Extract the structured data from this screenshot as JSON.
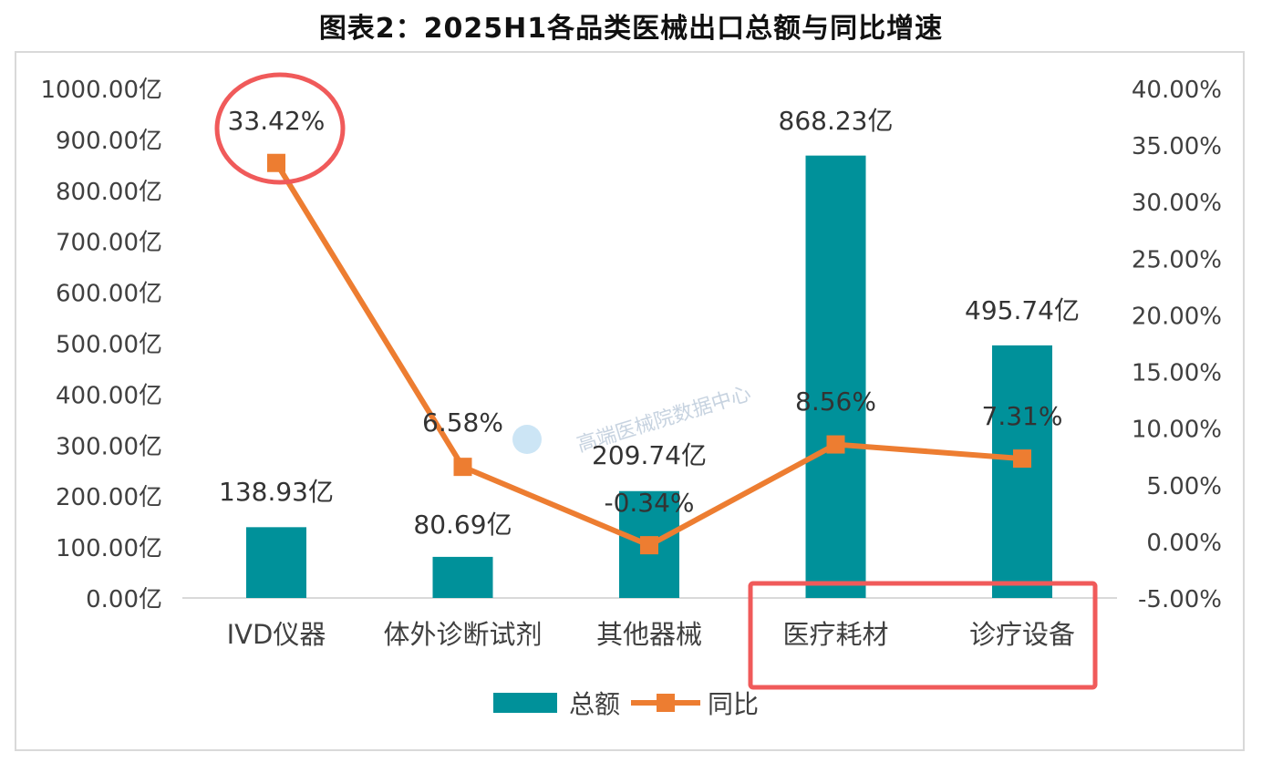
{
  "chart_data": {
    "type": "bar+line",
    "title": "图表2：2025H1各品类医械出口总额与同比增速",
    "categories": [
      "IVD仪器",
      "体外诊断试剂",
      "其他器械",
      "医疗耗材",
      "诊疗设备"
    ],
    "series": [
      {
        "name": "总额",
        "type": "bar",
        "axis": "left",
        "values": [
          138.93,
          80.69,
          209.74,
          868.23,
          495.74
        ],
        "labels": [
          "138.93亿",
          "80.69亿",
          "209.74亿",
          "868.23亿",
          "495.74亿"
        ],
        "color": "#00919A"
      },
      {
        "name": "同比",
        "type": "line",
        "axis": "right",
        "values": [
          33.42,
          6.58,
          -0.34,
          8.56,
          7.31
        ],
        "labels": [
          "33.42%",
          "6.58%",
          "-0.34%",
          "8.56%",
          "7.31%"
        ],
        "color": "#ED7D31"
      }
    ],
    "y_left": {
      "ylim": [
        0,
        1000
      ],
      "ticks": [
        "0.00亿",
        "100.00亿",
        "200.00亿",
        "300.00亿",
        "400.00亿",
        "500.00亿",
        "600.00亿",
        "700.00亿",
        "800.00亿",
        "900.00亿",
        "1000.00亿"
      ]
    },
    "y_right": {
      "ylim": [
        -5,
        40
      ],
      "ticks": [
        "-5.00%",
        "0.00%",
        "5.00%",
        "10.00%",
        "15.00%",
        "20.00%",
        "25.00%",
        "30.00%",
        "35.00%",
        "40.00%"
      ]
    },
    "legend": {
      "position": "bottom",
      "entries": [
        "总额",
        "同比"
      ]
    },
    "grid": false,
    "watermark": "高端医械院数据中心",
    "annotations": [
      {
        "shape": "ellipse",
        "target": "33.42%",
        "color": "#F05A5A"
      },
      {
        "shape": "rectangle",
        "target": [
          "医疗耗材",
          "诊疗设备"
        ],
        "color": "#F05A5A"
      }
    ]
  }
}
